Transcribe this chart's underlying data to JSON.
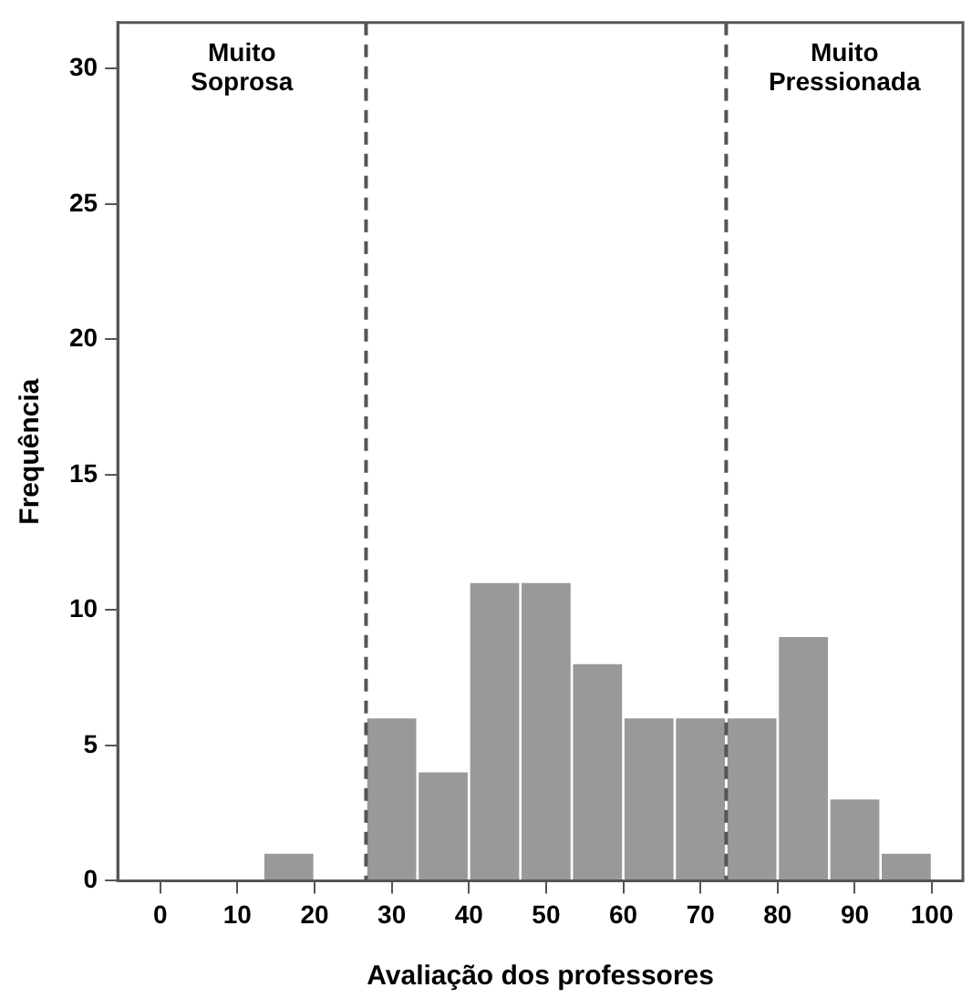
{
  "chart_data": {
    "type": "histogram",
    "xlabel": "Avaliação dos professores",
    "ylabel": "Frequência",
    "bins": [
      0,
      6.67,
      13.33,
      20,
      26.67,
      33.33,
      40,
      46.67,
      53.33,
      60,
      66.67,
      73.33,
      80,
      86.67,
      93.33,
      100
    ],
    "values": [
      0,
      0,
      1,
      0,
      6,
      4,
      11,
      11,
      8,
      6,
      6,
      6,
      9,
      3,
      1
    ],
    "color": "#999999",
    "xlim": [
      -5.5,
      104
    ],
    "xticks": [
      0,
      10,
      20,
      30,
      40,
      50,
      60,
      70,
      80,
      90,
      100
    ],
    "ylim": [
      0,
      31.7
    ],
    "yticks": [
      0,
      5,
      10,
      15,
      20,
      25,
      30
    ],
    "grid": false,
    "legend": false,
    "ref_lines": [
      {
        "axis": "x",
        "value": 26.67,
        "label": "Muito Soprosa",
        "color": "#555555",
        "line_style": "dashed"
      },
      {
        "axis": "x",
        "value": 73.33,
        "label": "Muito Pressionada",
        "color": "#555555",
        "line_style": "dashed"
      }
    ]
  }
}
